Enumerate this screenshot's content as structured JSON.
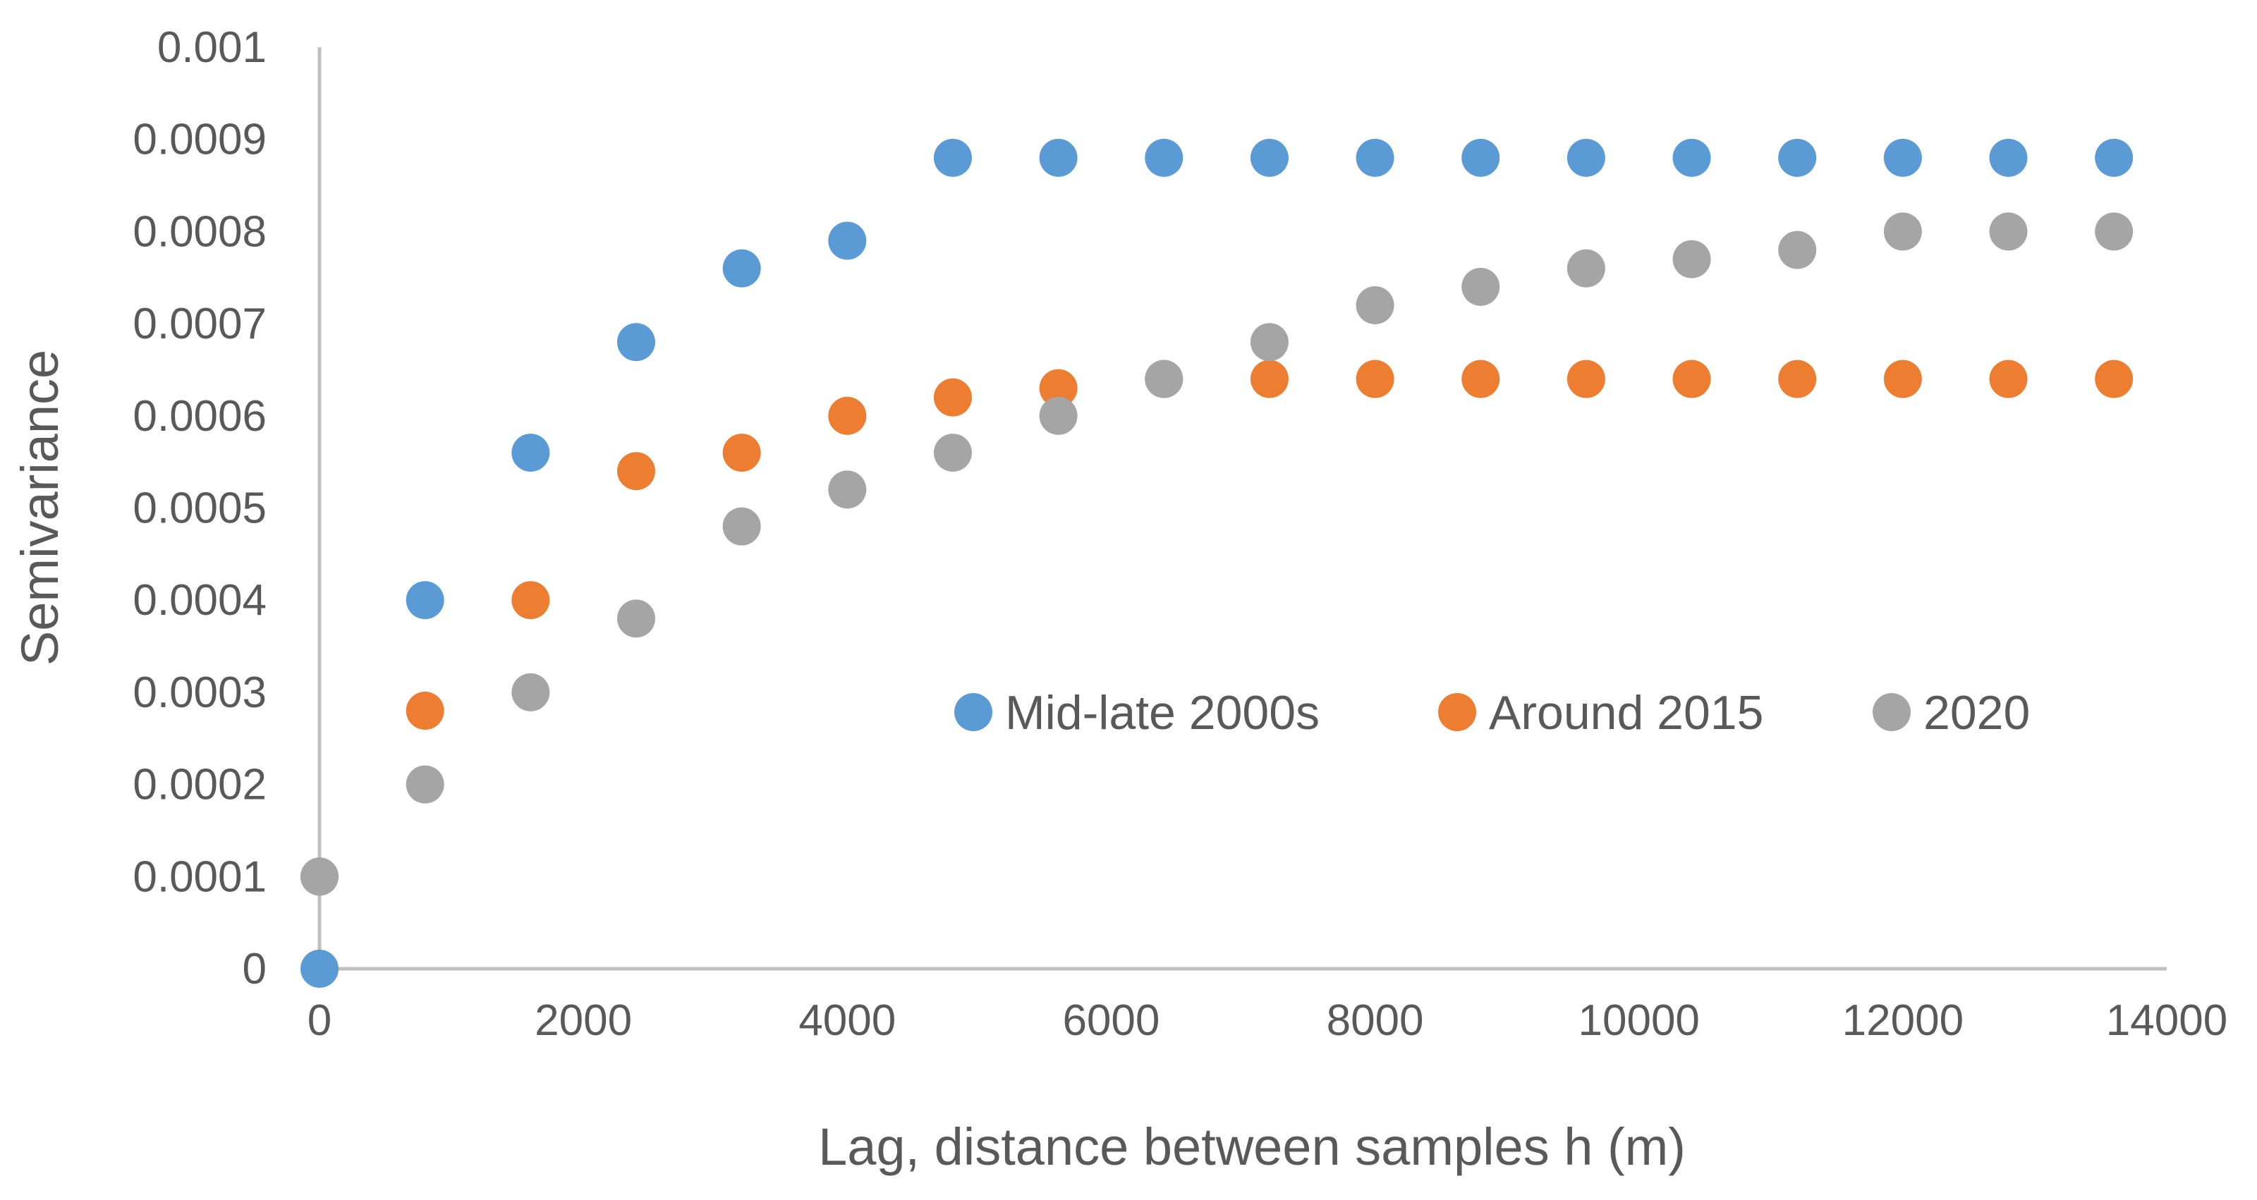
{
  "chart_data": {
    "type": "scatter",
    "xlabel": "Lag, distance between samples h (m)",
    "ylabel": "Semivariance",
    "xlim": [
      0,
      14000
    ],
    "ylim": [
      0,
      0.001
    ],
    "xticks": [
      "0",
      "2000",
      "4000",
      "6000",
      "8000",
      "10000",
      "12000",
      "14000"
    ],
    "yticks": [
      "0",
      "0.0001",
      "0.0002",
      "0.0003",
      "0.0004",
      "0.0005",
      "0.0006",
      "0.0007",
      "0.0008",
      "0.0009",
      "0.001"
    ],
    "grid": false,
    "legend_position": "inside-center-right",
    "x": [
      0,
      800,
      1600,
      2400,
      3200,
      4000,
      4800,
      5600,
      6400,
      7200,
      8000,
      8800,
      9600,
      10400,
      11200,
      12000,
      12800,
      13600
    ],
    "series": [
      {
        "name": "Mid-late 2000s",
        "color": "#5B9BD5",
        "values": [
          0,
          0.0004,
          0.00056,
          0.00068,
          0.00076,
          0.00079,
          0.00088,
          0.00088,
          0.00088,
          0.00088,
          0.00088,
          0.00088,
          0.00088,
          0.00088,
          0.00088,
          0.00088,
          0.00088,
          0.00088
        ]
      },
      {
        "name": "Around 2015",
        "color": "#ED7D31",
        "values": [
          0.0001,
          0.00028,
          0.0004,
          0.00054,
          0.00056,
          0.0006,
          0.00062,
          0.00063,
          0.00064,
          0.00064,
          0.00064,
          0.00064,
          0.00064,
          0.00064,
          0.00064,
          0.00064,
          0.00064,
          0.00064
        ]
      },
      {
        "name": "2020",
        "color": "#A5A5A5",
        "values": [
          0.0001,
          0.0002,
          0.0003,
          0.00038,
          0.00048,
          0.00052,
          0.00056,
          0.0006,
          0.00064,
          0.00068,
          0.00072,
          0.00074,
          0.00076,
          0.00077,
          0.00078,
          0.0008,
          0.0008,
          0.0008
        ]
      }
    ]
  }
}
